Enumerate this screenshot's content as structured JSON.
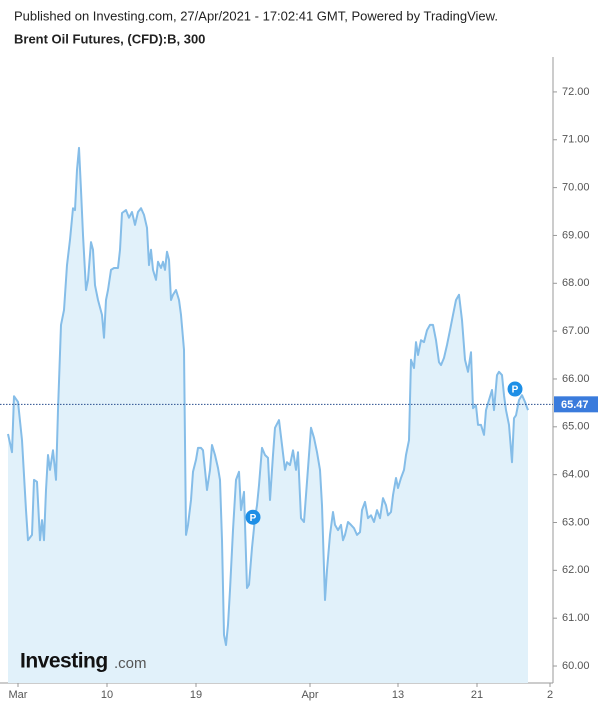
{
  "header": {
    "published": "Published on Investing.com, 27/Apr/2021 - 17:02:41 GMT, Powered by TradingView.",
    "logo": {
      "name": "Investing",
      "suffix": ".com"
    }
  },
  "chart_data": {
    "type": "area",
    "title": "Brent Oil Futures, (CFD):B, 300",
    "x": [
      0,
      4,
      6,
      10,
      14,
      18,
      20,
      24,
      26,
      29,
      32,
      34,
      36,
      38,
      40,
      42,
      45,
      48,
      50,
      53,
      56,
      59,
      62,
      65,
      67,
      69,
      71,
      73,
      75,
      78,
      80,
      83,
      85,
      87,
      90,
      94,
      96,
      98,
      100,
      103,
      106,
      110,
      112,
      114,
      118,
      121,
      124,
      127,
      130,
      133,
      136,
      139,
      141,
      143,
      145,
      148,
      150,
      153,
      155,
      157,
      159,
      161,
      163,
      165,
      168,
      171,
      173,
      176,
      178,
      180,
      183,
      185,
      188,
      190,
      193,
      195,
      197,
      199,
      202,
      204,
      207,
      210,
      212,
      214,
      216,
      218,
      220,
      222,
      225,
      228,
      231,
      233,
      236,
      239,
      241,
      244,
      247,
      249,
      251,
      254,
      257,
      260,
      262,
      265,
      267,
      271,
      274,
      277,
      279,
      282,
      285,
      288,
      290,
      293,
      296,
      299,
      303,
      306,
      309,
      312,
      314,
      317,
      319,
      322,
      325,
      327,
      330,
      333,
      335,
      337,
      340,
      343,
      346,
      349,
      352,
      354,
      357,
      360,
      363,
      366,
      369,
      372,
      375,
      378,
      380,
      383,
      385,
      388,
      390,
      393,
      396,
      398,
      401,
      403,
      406,
      408,
      410,
      413,
      416,
      419,
      422,
      425,
      428,
      431,
      433,
      436,
      439,
      442,
      445,
      448,
      451,
      454,
      457,
      460,
      463,
      465,
      468,
      470,
      473,
      476,
      478,
      481,
      484,
      486,
      489,
      491,
      494,
      496,
      498,
      501,
      504,
      506,
      508,
      511,
      514,
      517,
      520
    ],
    "values": [
      64.85,
      64.47,
      65.64,
      65.52,
      64.72,
      63.26,
      62.63,
      62.74,
      63.89,
      63.85,
      62.63,
      63.05,
      62.63,
      63.68,
      64.41,
      64.1,
      64.51,
      63.89,
      65.35,
      67.13,
      67.44,
      68.38,
      68.91,
      69.57,
      69.53,
      70.37,
      70.83,
      69.95,
      69.01,
      67.86,
      68.07,
      68.86,
      68.7,
      67.96,
      67.65,
      67.34,
      66.86,
      67.65,
      67.86,
      68.28,
      68.32,
      68.32,
      68.7,
      69.47,
      69.53,
      69.37,
      69.49,
      69.22,
      69.49,
      69.57,
      69.43,
      69.16,
      68.38,
      68.7,
      68.28,
      68.07,
      68.45,
      68.32,
      68.45,
      68.28,
      68.66,
      68.49,
      67.65,
      67.76,
      67.86,
      67.65,
      67.34,
      66.61,
      62.74,
      62.95,
      63.47,
      64.06,
      64.31,
      64.56,
      64.56,
      64.51,
      64.1,
      63.68,
      64.1,
      64.62,
      64.41,
      64.14,
      63.89,
      62.63,
      60.65,
      60.44,
      60.86,
      61.59,
      62.84,
      63.89,
      64.06,
      63.26,
      63.64,
      61.63,
      61.7,
      62.47,
      63.09,
      63.36,
      63.78,
      64.56,
      64.41,
      64.35,
      63.47,
      64.41,
      64.98,
      65.14,
      64.62,
      64.1,
      64.26,
      64.2,
      64.51,
      64.1,
      64.47,
      63.09,
      63.01,
      63.85,
      64.98,
      64.77,
      64.47,
      64.1,
      63.36,
      61.38,
      62.01,
      62.74,
      63.22,
      62.95,
      62.84,
      62.95,
      62.63,
      62.74,
      63.01,
      62.95,
      62.88,
      62.74,
      62.8,
      63.26,
      63.43,
      63.09,
      63.15,
      63.01,
      63.26,
      63.09,
      63.51,
      63.36,
      63.15,
      63.22,
      63.57,
      63.93,
      63.72,
      63.93,
      64.1,
      64.41,
      64.72,
      66.4,
      66.23,
      66.77,
      66.5,
      66.81,
      66.77,
      67.02,
      67.13,
      67.13,
      66.81,
      66.35,
      66.29,
      66.44,
      66.71,
      67.02,
      67.34,
      67.65,
      67.76,
      67.23,
      66.4,
      66.15,
      66.56,
      65.39,
      65.45,
      65.04,
      65.04,
      64.83,
      65.35,
      65.56,
      65.77,
      65.35,
      66.08,
      66.15,
      66.08,
      65.66,
      65.35,
      65.04,
      64.26,
      65.18,
      65.24,
      65.56,
      65.66,
      65.52,
      65.35
    ],
    "color": "#85bde8",
    "fill": "#e1f1fa",
    "xlim": [
      0,
      545
    ],
    "xticks": [
      {
        "value": 10,
        "label": "Mar"
      },
      {
        "value": 99,
        "label": "10"
      },
      {
        "value": 188,
        "label": "19"
      },
      {
        "value": 302,
        "label": "Apr"
      },
      {
        "value": 390,
        "label": "13"
      },
      {
        "value": 469,
        "label": "21"
      },
      {
        "value": 542,
        "label": "2"
      }
    ],
    "ylim": [
      59.645,
      72.73
    ],
    "yticks": [
      {
        "value": 60,
        "label": "60.00"
      },
      {
        "value": 61,
        "label": "61.00"
      },
      {
        "value": 62,
        "label": "62.00"
      },
      {
        "value": 63,
        "label": "63.00"
      },
      {
        "value": 64,
        "label": "64.00"
      },
      {
        "value": 65,
        "label": "65.00"
      },
      {
        "value": 66,
        "label": "66.00"
      },
      {
        "value": 67,
        "label": "67.00"
      },
      {
        "value": 68,
        "label": "68.00"
      },
      {
        "value": 69,
        "label": "69.00"
      },
      {
        "value": 70,
        "label": "70.00"
      },
      {
        "value": 71,
        "label": "71.00"
      },
      {
        "value": 72,
        "label": "72.00"
      }
    ],
    "last_price": {
      "value": 65.47,
      "label": "65.47",
      "color": "#3a7bdc"
    },
    "markers": [
      {
        "label": "P",
        "x": 245,
        "y": 63.11
      },
      {
        "label": "P",
        "x": 507,
        "y": 65.79
      }
    ]
  }
}
